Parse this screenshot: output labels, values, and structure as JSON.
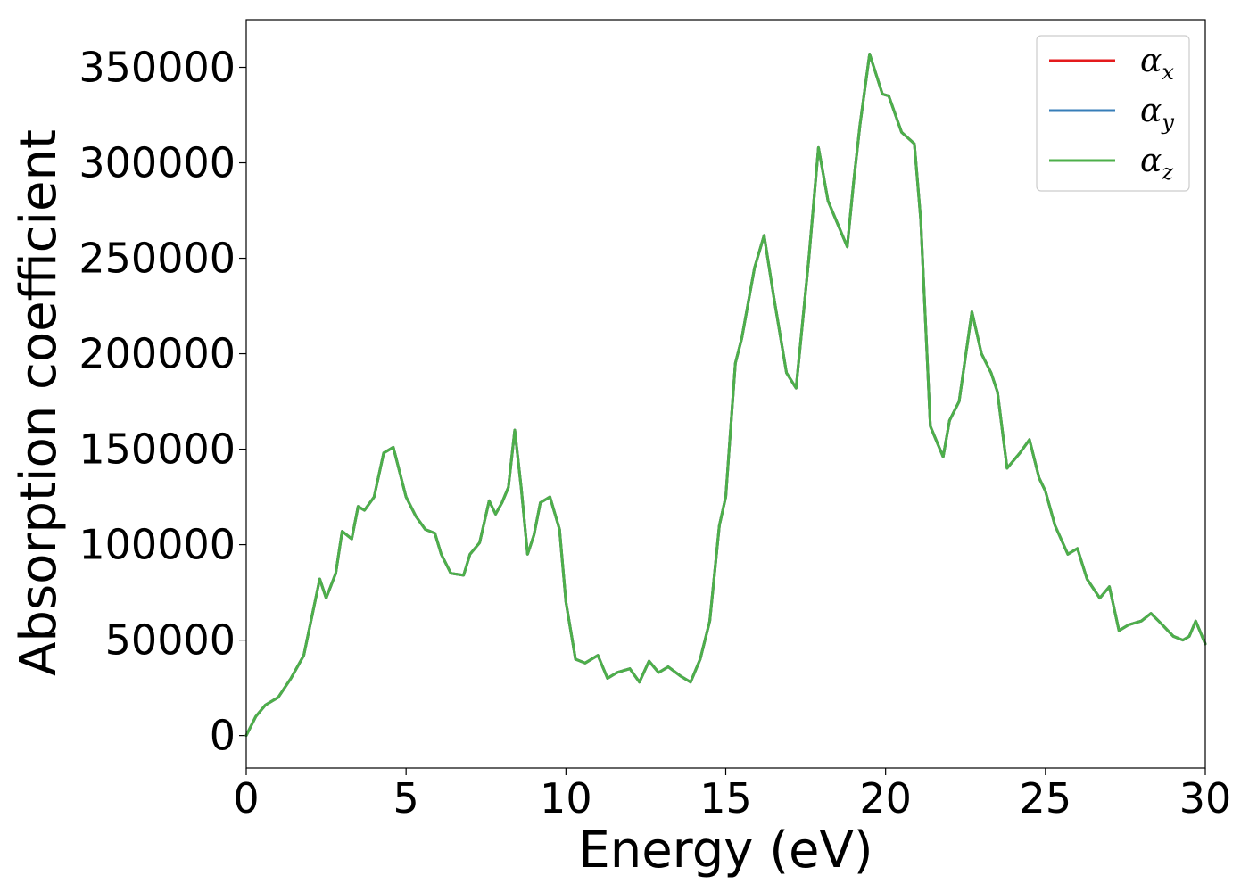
{
  "chart_data": {
    "type": "line",
    "title": "",
    "xlabel": "Energy (eV)",
    "ylabel": "Absorption coefficient",
    "xlim": [
      0,
      30
    ],
    "ylim": [
      -17000,
      375000
    ],
    "xticks": [
      0,
      5,
      10,
      15,
      20,
      25,
      30
    ],
    "yticks": [
      0,
      50000,
      100000,
      150000,
      200000,
      250000,
      300000,
      350000
    ],
    "grid": false,
    "legend_position": "top-right",
    "series": [
      {
        "name": "αx",
        "legend_symbol": "α",
        "legend_subscript": "x",
        "color": "#e41a1c",
        "x": [
          0,
          0.3,
          0.6,
          1.0,
          1.4,
          1.8,
          2.1,
          2.3,
          2.5,
          2.8,
          3.0,
          3.3,
          3.5,
          3.7,
          4.0,
          4.3,
          4.6,
          4.8,
          5.0,
          5.3,
          5.6,
          5.9,
          6.1,
          6.4,
          6.8,
          7.0,
          7.3,
          7.6,
          7.8,
          8.0,
          8.2,
          8.4,
          8.6,
          8.8,
          9.0,
          9.2,
          9.5,
          9.8,
          10.0,
          10.3,
          10.6,
          11.0,
          11.3,
          11.6,
          12.0,
          12.3,
          12.6,
          12.9,
          13.2,
          13.6,
          13.9,
          14.2,
          14.5,
          14.8,
          15.0,
          15.3,
          15.5,
          15.9,
          16.2,
          16.5,
          16.9,
          17.2,
          17.6,
          17.9,
          18.2,
          18.5,
          18.8,
          19.0,
          19.2,
          19.5,
          19.9,
          20.1,
          20.5,
          20.9,
          21.1,
          21.4,
          21.8,
          22.0,
          22.3,
          22.7,
          23.0,
          23.3,
          23.5,
          23.8,
          24.2,
          24.5,
          24.8,
          25.0,
          25.3,
          25.7,
          26.0,
          26.3,
          26.7,
          27.0,
          27.3,
          27.6,
          28.0,
          28.3,
          28.6,
          29.0,
          29.3,
          29.5,
          29.7,
          30.0
        ],
        "y": [
          0,
          10000,
          16000,
          20000,
          30000,
          42000,
          66000,
          82000,
          72000,
          85000,
          107000,
          103000,
          120000,
          118000,
          125000,
          148000,
          151000,
          138000,
          125000,
          115000,
          108000,
          106000,
          95000,
          85000,
          84000,
          95000,
          101000,
          123000,
          116000,
          122000,
          130000,
          160000,
          130000,
          95000,
          105000,
          122000,
          125000,
          108000,
          70000,
          40000,
          38000,
          42000,
          30000,
          33000,
          35000,
          28000,
          39000,
          33000,
          36000,
          31000,
          28000,
          40000,
          60000,
          110000,
          125000,
          195000,
          208000,
          245000,
          262000,
          230000,
          190000,
          182000,
          250000,
          308000,
          280000,
          268000,
          256000,
          290000,
          320000,
          357000,
          336000,
          335000,
          316000,
          310000,
          270000,
          162000,
          146000,
          165000,
          175000,
          222000,
          200000,
          190000,
          180000,
          140000,
          148000,
          155000,
          135000,
          128000,
          110000,
          95000,
          98000,
          82000,
          72000,
          78000,
          55000,
          58000,
          60000,
          64000,
          59000,
          52000,
          50000,
          52000,
          60000,
          48000
        ]
      },
      {
        "name": "αy",
        "legend_symbol": "α",
        "legend_subscript": "y",
        "color": "#377eb8",
        "same_as": "αx"
      },
      {
        "name": "αz",
        "legend_symbol": "α",
        "legend_subscript": "z",
        "color": "#4daf4a",
        "same_as": "αx"
      }
    ]
  }
}
